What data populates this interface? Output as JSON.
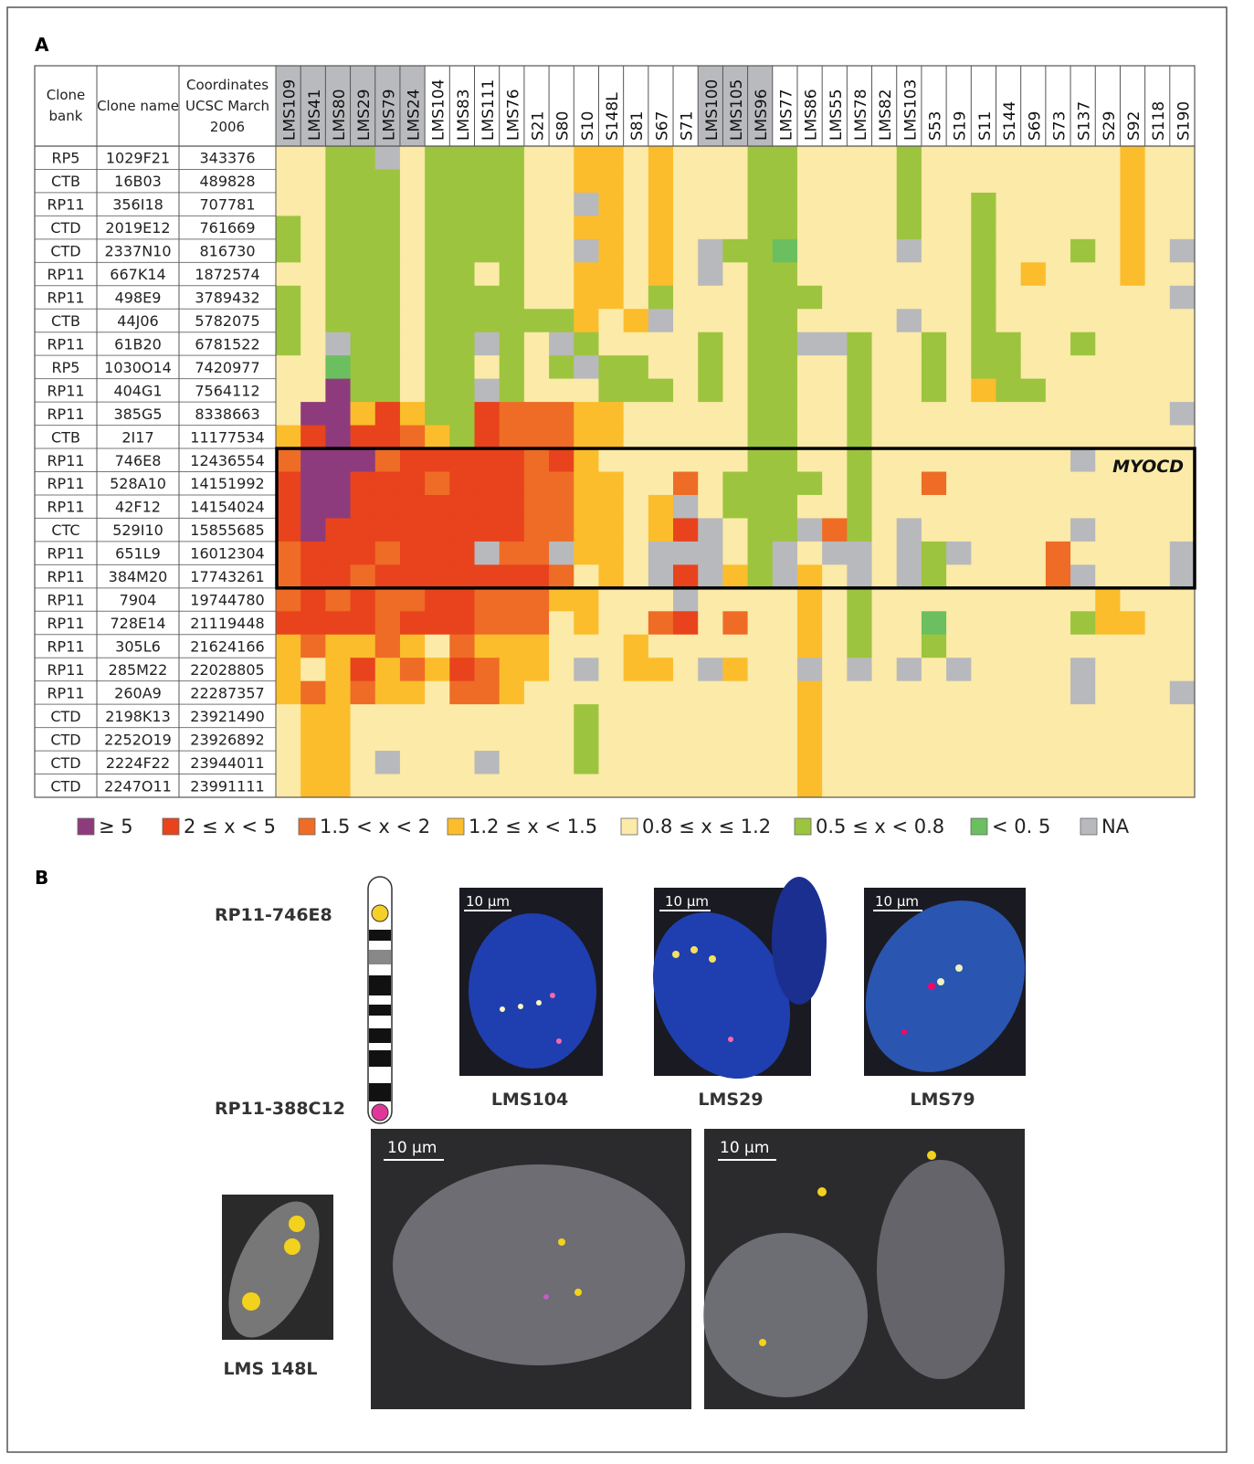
{
  "panel_a": {
    "label": "A",
    "row_headers": [
      "Clone bank",
      "Clone name",
      "Coordinates UCSC March 2006"
    ],
    "samples": [
      "LMS109",
      "LMS41",
      "LMS80",
      "LMS29",
      "LMS79",
      "LMS24",
      "LMS104",
      "LMS83",
      "LMS111",
      "LMS76",
      "S21",
      "S80",
      "S10",
      "S148L",
      "S81",
      "S67",
      "S71",
      "LMS100",
      "LMS105",
      "LMS96",
      "LMS77",
      "LMS86",
      "LMS55",
      "LMS78",
      "LMS82",
      "LMS103",
      "S53",
      "S19",
      "S11",
      "S144",
      "S69",
      "S73",
      "S137",
      "S29",
      "S92",
      "S118",
      "S190"
    ],
    "sample_header_gray": [
      true,
      true,
      true,
      true,
      true,
      true,
      false,
      false,
      false,
      false,
      false,
      false,
      false,
      false,
      false,
      false,
      false,
      true,
      true,
      true,
      false,
      false,
      false,
      false,
      false,
      false,
      false,
      false,
      false,
      false,
      false,
      false,
      false,
      false,
      false,
      false,
      false
    ],
    "rows": [
      {
        "bank": "RP5",
        "name": "1029F21",
        "coordinate": 343376,
        "cells": [
          4,
          4,
          5,
          5,
          7,
          4,
          5,
          5,
          5,
          5,
          4,
          4,
          3,
          3,
          4,
          3,
          4,
          4,
          4,
          5,
          5,
          4,
          4,
          4,
          4,
          5,
          4,
          4,
          4,
          4,
          4,
          4,
          4,
          4,
          3,
          4,
          4
        ]
      },
      {
        "bank": "CTB",
        "name": "16B03",
        "coordinate": 489828,
        "cells": [
          4,
          4,
          5,
          5,
          5,
          4,
          5,
          5,
          5,
          5,
          4,
          4,
          3,
          3,
          4,
          3,
          4,
          4,
          4,
          5,
          5,
          4,
          4,
          4,
          4,
          5,
          4,
          4,
          4,
          4,
          4,
          4,
          4,
          4,
          3,
          4,
          4
        ]
      },
      {
        "bank": "RP11",
        "name": "356I18",
        "coordinate": 707781,
        "cells": [
          4,
          4,
          5,
          5,
          5,
          4,
          5,
          5,
          5,
          5,
          4,
          4,
          7,
          3,
          4,
          3,
          4,
          4,
          4,
          5,
          5,
          4,
          4,
          4,
          4,
          5,
          4,
          4,
          5,
          4,
          4,
          4,
          4,
          4,
          3,
          4,
          4
        ]
      },
      {
        "bank": "CTD",
        "name": "2019E12",
        "coordinate": 761669,
        "cells": [
          5,
          4,
          5,
          5,
          5,
          4,
          5,
          5,
          5,
          5,
          4,
          4,
          3,
          3,
          4,
          3,
          4,
          4,
          4,
          5,
          5,
          4,
          4,
          4,
          4,
          5,
          4,
          4,
          5,
          4,
          4,
          4,
          4,
          4,
          3,
          4,
          4
        ]
      },
      {
        "bank": "CTD",
        "name": "2337N10",
        "coordinate": 816730,
        "cells": [
          5,
          4,
          5,
          5,
          5,
          4,
          5,
          5,
          5,
          5,
          4,
          4,
          7,
          3,
          4,
          3,
          4,
          7,
          5,
          5,
          6,
          4,
          4,
          4,
          4,
          7,
          4,
          4,
          5,
          4,
          4,
          4,
          5,
          4,
          3,
          4,
          7
        ]
      },
      {
        "bank": "RP11",
        "name": "667K14",
        "coordinate": 1872574,
        "cells": [
          4,
          4,
          5,
          5,
          5,
          4,
          5,
          5,
          4,
          5,
          4,
          4,
          3,
          3,
          4,
          3,
          4,
          7,
          4,
          5,
          5,
          4,
          4,
          4,
          4,
          4,
          4,
          4,
          5,
          4,
          3,
          4,
          4,
          4,
          3,
          4,
          4
        ]
      },
      {
        "bank": "RP11",
        "name": "498E9",
        "coordinate": 3789432,
        "cells": [
          5,
          4,
          5,
          5,
          5,
          4,
          5,
          5,
          5,
          5,
          4,
          4,
          3,
          3,
          4,
          5,
          4,
          4,
          4,
          5,
          5,
          5,
          4,
          4,
          4,
          4,
          4,
          4,
          5,
          4,
          4,
          4,
          4,
          4,
          4,
          4,
          7
        ]
      },
      {
        "bank": "CTB",
        "name": "44J06",
        "coordinate": 5782075,
        "cells": [
          5,
          4,
          5,
          5,
          5,
          4,
          5,
          5,
          5,
          5,
          5,
          5,
          3,
          4,
          3,
          7,
          4,
          4,
          4,
          5,
          5,
          4,
          4,
          4,
          4,
          7,
          4,
          4,
          5,
          4,
          4,
          4,
          4,
          4,
          4,
          4,
          4
        ]
      },
      {
        "bank": "RP11",
        "name": "61B20",
        "coordinate": 6781522,
        "cells": [
          5,
          4,
          7,
          5,
          5,
          4,
          5,
          5,
          7,
          5,
          4,
          7,
          5,
          4,
          4,
          4,
          4,
          5,
          4,
          5,
          5,
          7,
          7,
          5,
          4,
          4,
          5,
          4,
          5,
          5,
          4,
          4,
          5,
          4,
          4,
          4,
          4
        ]
      },
      {
        "bank": "RP5",
        "name": "1030O14",
        "coordinate": 7420977,
        "cells": [
          4,
          4,
          6,
          5,
          5,
          4,
          5,
          5,
          4,
          5,
          4,
          5,
          7,
          5,
          5,
          4,
          4,
          5,
          4,
          5,
          5,
          4,
          4,
          5,
          4,
          4,
          5,
          4,
          5,
          5,
          4,
          4,
          4,
          4,
          4,
          4,
          4
        ]
      },
      {
        "bank": "RP11",
        "name": "404G1",
        "coordinate": 7564112,
        "cells": [
          4,
          4,
          0,
          5,
          5,
          4,
          5,
          5,
          7,
          5,
          4,
          4,
          4,
          5,
          5,
          5,
          4,
          5,
          4,
          5,
          5,
          4,
          4,
          5,
          4,
          4,
          5,
          4,
          3,
          5,
          5,
          4,
          4,
          4,
          4,
          4,
          4
        ]
      },
      {
        "bank": "RP11",
        "name": "385G5",
        "coordinate": 8338663,
        "cells": [
          4,
          0,
          0,
          3,
          1,
          3,
          5,
          5,
          1,
          2,
          2,
          2,
          3,
          3,
          4,
          4,
          4,
          4,
          4,
          5,
          5,
          4,
          4,
          5,
          4,
          4,
          4,
          4,
          4,
          4,
          4,
          4,
          4,
          4,
          4,
          4,
          7
        ]
      },
      {
        "bank": "CTB",
        "name": "2I17",
        "coordinate": 11177534,
        "cells": [
          3,
          1,
          0,
          1,
          1,
          2,
          3,
          5,
          1,
          2,
          2,
          2,
          3,
          3,
          4,
          4,
          4,
          4,
          4,
          5,
          5,
          4,
          4,
          5,
          4,
          4,
          4,
          4,
          4,
          4,
          4,
          4,
          4,
          4,
          4,
          4,
          4
        ]
      },
      {
        "bank": "RP11",
        "name": "746E8",
        "coordinate": 12436554,
        "cells": [
          2,
          0,
          0,
          0,
          2,
          1,
          1,
          1,
          1,
          1,
          2,
          1,
          3,
          4,
          4,
          4,
          4,
          4,
          4,
          5,
          5,
          4,
          4,
          5,
          4,
          4,
          4,
          4,
          4,
          4,
          4,
          4,
          7,
          4,
          4,
          4,
          4
        ]
      },
      {
        "bank": "RP11",
        "name": "528A10",
        "coordinate": 14151992,
        "cells": [
          1,
          0,
          0,
          1,
          1,
          1,
          2,
          1,
          1,
          1,
          2,
          2,
          3,
          3,
          4,
          4,
          2,
          4,
          5,
          5,
          5,
          5,
          4,
          5,
          4,
          4,
          2,
          4,
          4,
          4,
          4,
          4,
          4,
          4,
          4,
          4,
          4
        ]
      },
      {
        "bank": "RP11",
        "name": "42F12",
        "coordinate": 14154024,
        "cells": [
          1,
          0,
          0,
          1,
          1,
          1,
          1,
          1,
          1,
          1,
          2,
          2,
          3,
          3,
          4,
          3,
          7,
          4,
          5,
          5,
          5,
          4,
          4,
          5,
          4,
          4,
          4,
          4,
          4,
          4,
          4,
          4,
          4,
          4,
          4,
          4,
          4
        ]
      },
      {
        "bank": "CTC",
        "name": "529I10",
        "coordinate": 15855685,
        "cells": [
          1,
          0,
          1,
          1,
          1,
          1,
          1,
          1,
          1,
          1,
          2,
          2,
          3,
          3,
          4,
          3,
          1,
          7,
          4,
          5,
          5,
          7,
          2,
          5,
          4,
          7,
          4,
          4,
          4,
          4,
          4,
          4,
          7,
          4,
          4,
          4,
          4
        ]
      },
      {
        "bank": "RP11",
        "name": "651L9",
        "coordinate": 16012304,
        "cells": [
          2,
          1,
          1,
          1,
          2,
          1,
          1,
          1,
          7,
          2,
          2,
          7,
          3,
          3,
          4,
          7,
          7,
          7,
          4,
          5,
          7,
          4,
          7,
          7,
          4,
          7,
          5,
          7,
          4,
          4,
          4,
          2,
          4,
          4,
          4,
          4,
          7
        ]
      },
      {
        "bank": "RP11",
        "name": "384M20",
        "coordinate": 17743261,
        "cells": [
          2,
          1,
          1,
          2,
          1,
          1,
          1,
          1,
          1,
          1,
          1,
          2,
          4,
          3,
          4,
          7,
          1,
          7,
          3,
          5,
          7,
          3,
          4,
          7,
          4,
          7,
          5,
          4,
          4,
          4,
          4,
          2,
          7,
          4,
          4,
          4,
          7
        ]
      },
      {
        "bank": "RP11",
        "name": "7904",
        "coordinate": 19744780,
        "cells": [
          2,
          1,
          2,
          1,
          2,
          2,
          1,
          1,
          2,
          2,
          2,
          3,
          3,
          4,
          4,
          4,
          7,
          4,
          4,
          4,
          4,
          3,
          4,
          5,
          4,
          4,
          4,
          4,
          4,
          4,
          4,
          4,
          4,
          3,
          4,
          4,
          4
        ]
      },
      {
        "bank": "RP11",
        "name": "728E14",
        "coordinate": 21119448,
        "cells": [
          1,
          1,
          1,
          1,
          2,
          1,
          1,
          1,
          2,
          2,
          2,
          4,
          3,
          4,
          4,
          2,
          1,
          4,
          2,
          4,
          4,
          3,
          4,
          5,
          4,
          4,
          6,
          4,
          4,
          4,
          4,
          4,
          5,
          3,
          3,
          4,
          4
        ]
      },
      {
        "bank": "RP11",
        "name": "305L6",
        "coordinate": 21624166,
        "cells": [
          3,
          2,
          3,
          3,
          2,
          3,
          4,
          2,
          3,
          3,
          3,
          4,
          4,
          4,
          3,
          4,
          4,
          4,
          4,
          4,
          4,
          3,
          4,
          5,
          4,
          4,
          5,
          4,
          4,
          4,
          4,
          4,
          4,
          4,
          4,
          4,
          4
        ]
      },
      {
        "bank": "RP11",
        "name": "285M22",
        "coordinate": 22028805,
        "cells": [
          3,
          4,
          3,
          1,
          3,
          2,
          3,
          1,
          2,
          3,
          3,
          4,
          7,
          4,
          3,
          3,
          4,
          7,
          3,
          4,
          4,
          7,
          4,
          7,
          4,
          7,
          4,
          7,
          4,
          4,
          4,
          4,
          7,
          4,
          4,
          4,
          4
        ]
      },
      {
        "bank": "RP11",
        "name": "260A9",
        "coordinate": 22287357,
        "cells": [
          3,
          2,
          3,
          2,
          3,
          3,
          4,
          2,
          2,
          3,
          4,
          4,
          4,
          4,
          4,
          4,
          4,
          4,
          4,
          4,
          4,
          3,
          4,
          4,
          4,
          4,
          4,
          4,
          4,
          4,
          4,
          4,
          7,
          4,
          4,
          4,
          7
        ]
      },
      {
        "bank": "CTD",
        "name": "2198K13",
        "coordinate": 23921490,
        "cells": [
          4,
          3,
          3,
          4,
          4,
          4,
          4,
          4,
          4,
          4,
          4,
          4,
          5,
          4,
          4,
          4,
          4,
          4,
          4,
          4,
          4,
          3,
          4,
          4,
          4,
          4,
          4,
          4,
          4,
          4,
          4,
          4,
          4,
          4,
          4,
          4,
          4
        ]
      },
      {
        "bank": "CTD",
        "name": "2252O19",
        "coordinate": 23926892,
        "cells": [
          4,
          3,
          3,
          4,
          4,
          4,
          4,
          4,
          4,
          4,
          4,
          4,
          5,
          4,
          4,
          4,
          4,
          4,
          4,
          4,
          4,
          3,
          4,
          4,
          4,
          4,
          4,
          4,
          4,
          4,
          4,
          4,
          4,
          4,
          4,
          4,
          4
        ]
      },
      {
        "bank": "CTD",
        "name": "2224F22",
        "coordinate": 23944011,
        "cells": [
          4,
          3,
          3,
          4,
          7,
          4,
          4,
          4,
          7,
          4,
          4,
          4,
          5,
          4,
          4,
          4,
          4,
          4,
          4,
          4,
          4,
          3,
          4,
          4,
          4,
          4,
          4,
          4,
          4,
          4,
          4,
          4,
          4,
          4,
          4,
          4,
          4
        ]
      },
      {
        "bank": "CTD",
        "name": "2247O11",
        "coordinate": 23991111,
        "cells": [
          4,
          3,
          3,
          4,
          4,
          4,
          4,
          4,
          4,
          4,
          4,
          4,
          4,
          4,
          4,
          4,
          4,
          4,
          4,
          4,
          4,
          3,
          4,
          4,
          4,
          4,
          4,
          4,
          4,
          4,
          4,
          4,
          4,
          4,
          4,
          4,
          4
        ]
      }
    ],
    "box": {
      "label": "MYOCD",
      "from": "746E8",
      "to": "384M20"
    },
    "legend": [
      {
        "label": "≥ 5",
        "color": "#8e3b7d"
      },
      {
        "label": "2 ≤  x < 5",
        "color": "#e8431d"
      },
      {
        "label": "1.5 < x < 2",
        "color": "#ee6c26"
      },
      {
        "label": "1.2 ≤  x < 1.5",
        "color": "#fbbd2c"
      },
      {
        "label": "0.8 ≤  x ≤ 1.2",
        "color": "#fbeaa8"
      },
      {
        "label": "0.5 ≤  x < 0.8",
        "color": "#9dc43e"
      },
      {
        "label": "< 0. 5",
        "color": "#6bbf5f"
      },
      {
        "label": "NA",
        "color": "#b8b9bc"
      }
    ]
  },
  "panel_b": {
    "label": "B",
    "probes": [
      "RP11-746E8",
      "RP11-388C12"
    ],
    "scale_bar": "10 μm",
    "captions": [
      "LMS104",
      "LMS29",
      "LMS79",
      "LMS 148L"
    ]
  }
}
